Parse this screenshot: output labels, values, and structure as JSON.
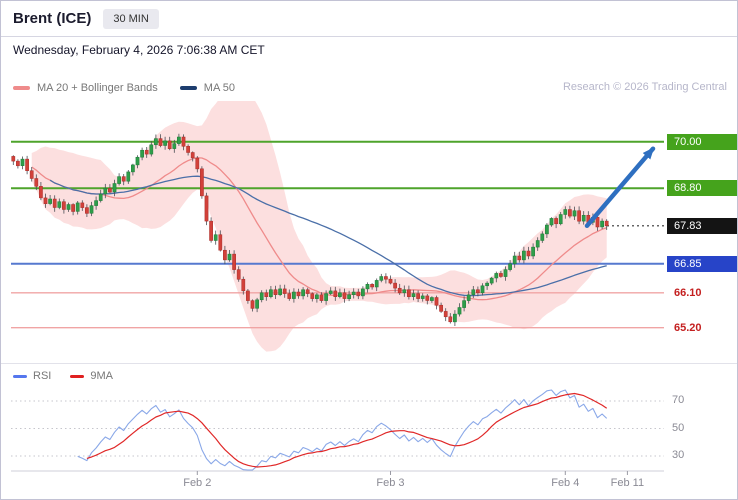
{
  "header": {
    "title": "Brent (ICE)",
    "timeframe": "30 MIN",
    "datetime": "Wednesday, February 4, 2026 7:06:38 AM CET"
  },
  "legend": {
    "ma20_label": "MA 20 + Bollinger Bands",
    "ma50_label": "MA 50",
    "copyright": "Research © 2026 Trading Central"
  },
  "rsi_panel": {
    "rsi_label": "RSI",
    "ma9_label": "9MA"
  },
  "colors": {
    "candle_up": "#2e9e4a",
    "candle_up_border": "#1d7a36",
    "candle_down": "#d2413a",
    "candle_down_border": "#a82c28",
    "wick": "#4a4e55",
    "band_fill": "rgba(246,158,158,0.33)",
    "ma20_line": "#ef8b8b",
    "ma50_line": "#4a6fa8",
    "ma20_swatch": "#ef8b8b",
    "ma50_swatch": "#1d3d6e",
    "rsi_line": "#8aa8e8",
    "rsi_ma_line": "#e02828",
    "rsi_swatch": "#5577ee",
    "ma9_swatch": "#e02020",
    "arrow": "#2e6fc0",
    "grid_dotted": "#c6c6cc",
    "axis": "#cfcfd8"
  },
  "chart_data": {
    "type": "candlestick",
    "title": "Brent (ICE) 30 MIN",
    "interval": "30 MIN",
    "current_price": 67.83,
    "ylim": [
      64.2,
      71.05
    ],
    "closes": [
      69.5,
      69.38,
      69.55,
      69.25,
      69.05,
      68.85,
      68.55,
      68.4,
      68.52,
      68.3,
      68.45,
      68.25,
      68.38,
      68.2,
      68.42,
      68.3,
      68.15,
      68.35,
      68.48,
      68.65,
      68.8,
      68.7,
      68.92,
      69.1,
      68.98,
      69.22,
      69.4,
      69.6,
      69.78,
      69.68,
      69.92,
      70.08,
      69.9,
      70.02,
      69.82,
      69.95,
      70.12,
      69.88,
      69.72,
      69.58,
      69.3,
      68.6,
      67.95,
      67.45,
      67.6,
      67.2,
      66.95,
      67.1,
      66.7,
      66.45,
      66.15,
      65.9,
      65.7,
      65.92,
      66.1,
      66.0,
      66.18,
      66.05,
      66.2,
      66.08,
      65.95,
      66.12,
      66.02,
      66.18,
      66.08,
      65.95,
      66.05,
      65.9,
      66.08,
      66.15,
      66.0,
      66.1,
      65.95,
      66.05,
      66.12,
      66.02,
      66.2,
      66.32,
      66.25,
      66.42,
      66.52,
      66.45,
      66.35,
      66.22,
      66.1,
      66.18,
      66.0,
      66.08,
      65.95,
      66.02,
      65.9,
      65.98,
      65.78,
      65.62,
      65.48,
      65.35,
      65.55,
      65.72,
      65.9,
      66.05,
      66.18,
      66.1,
      66.28,
      66.35,
      66.48,
      66.6,
      66.52,
      66.7,
      66.85,
      67.05,
      66.95,
      67.18,
      67.05,
      67.28,
      67.45,
      67.62,
      67.85,
      68.02,
      67.88,
      68.12,
      68.25,
      68.08,
      68.22,
      67.95,
      68.1,
      67.92,
      68.05,
      67.8,
      67.95,
      67.83
    ],
    "overlays": {
      "ma20": 20,
      "ma50": 50,
      "bollinger_sigma": 2,
      "rsi_period": 14,
      "rsi_smoothing": 9
    },
    "price_levels": [
      {
        "label": "70.00",
        "price": 70.0,
        "kind": "badge",
        "bg": "#45a31c",
        "fg": "#ffffff",
        "line_color": "#4ea42b",
        "line_width": 2,
        "dash": null,
        "span": "full"
      },
      {
        "label": "68.80",
        "price": 68.8,
        "kind": "badge",
        "bg": "#45a31c",
        "fg": "#ffffff",
        "line_color": "#4ea42b",
        "line_width": 2,
        "dash": null,
        "span": "full"
      },
      {
        "label": "67.83",
        "price": 67.83,
        "kind": "badge",
        "bg": "#141414",
        "fg": "#ffffff",
        "line_color": "#333333",
        "line_width": 1.2,
        "dash": "2,3",
        "span": "right"
      },
      {
        "label": "66.85",
        "price": 66.85,
        "kind": "badge",
        "bg": "#2744c8",
        "fg": "#ffffff",
        "line_color": "#5679cf",
        "line_width": 2,
        "dash": null,
        "span": "full"
      },
      {
        "label": "66.10",
        "price": 66.1,
        "kind": "text",
        "bg": null,
        "fg": "#c42020",
        "line_color": "#f0a4a4",
        "line_width": 1.3,
        "dash": null,
        "span": "full"
      },
      {
        "label": "65.20",
        "price": 65.2,
        "kind": "text",
        "bg": null,
        "fg": "#c42020",
        "line_color": "#f0a4a4",
        "line_width": 1.3,
        "dash": null,
        "span": "full"
      }
    ],
    "x_ticks": [
      {
        "label": "Feb 2",
        "i": 40
      },
      {
        "label": "Feb 3",
        "i": 82
      },
      {
        "label": "Feb 4",
        "i": 120
      },
      {
        "label": "Feb 11",
        "i": 133.5
      }
    ],
    "rsi_grid": [
      {
        "label": "70",
        "value": 70
      },
      {
        "label": "50",
        "value": 50
      },
      {
        "label": "30",
        "value": 30
      }
    ],
    "projection": {
      "from_price": 67.83,
      "to_price": 70.0,
      "direction": "up"
    }
  }
}
